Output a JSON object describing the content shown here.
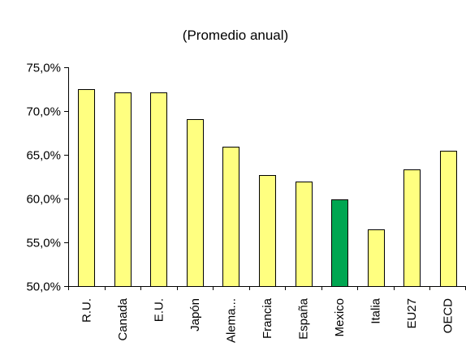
{
  "chart_data": {
    "type": "bar",
    "subtitle": "(Promedio anual)",
    "categories": [
      "R.U.",
      "Canada",
      "E.U.",
      "Japón",
      "Alema...",
      "Francia",
      "España",
      "Mexico",
      "Italia",
      "EU27",
      "OECD"
    ],
    "values": [
      72.5,
      72.1,
      72.1,
      69.1,
      65.9,
      62.7,
      61.9,
      59.9,
      56.5,
      63.3,
      65.5
    ],
    "ylim": [
      50,
      75
    ],
    "yticks": [
      "50,0%",
      "55,0%",
      "60,0%",
      "65,0%",
      "70,0%",
      "75,0%"
    ],
    "grid": false,
    "legend": "none",
    "colors": {
      "default": "#FFFF80",
      "highlight": "#00A651",
      "highlight_category": "Mexico"
    }
  }
}
